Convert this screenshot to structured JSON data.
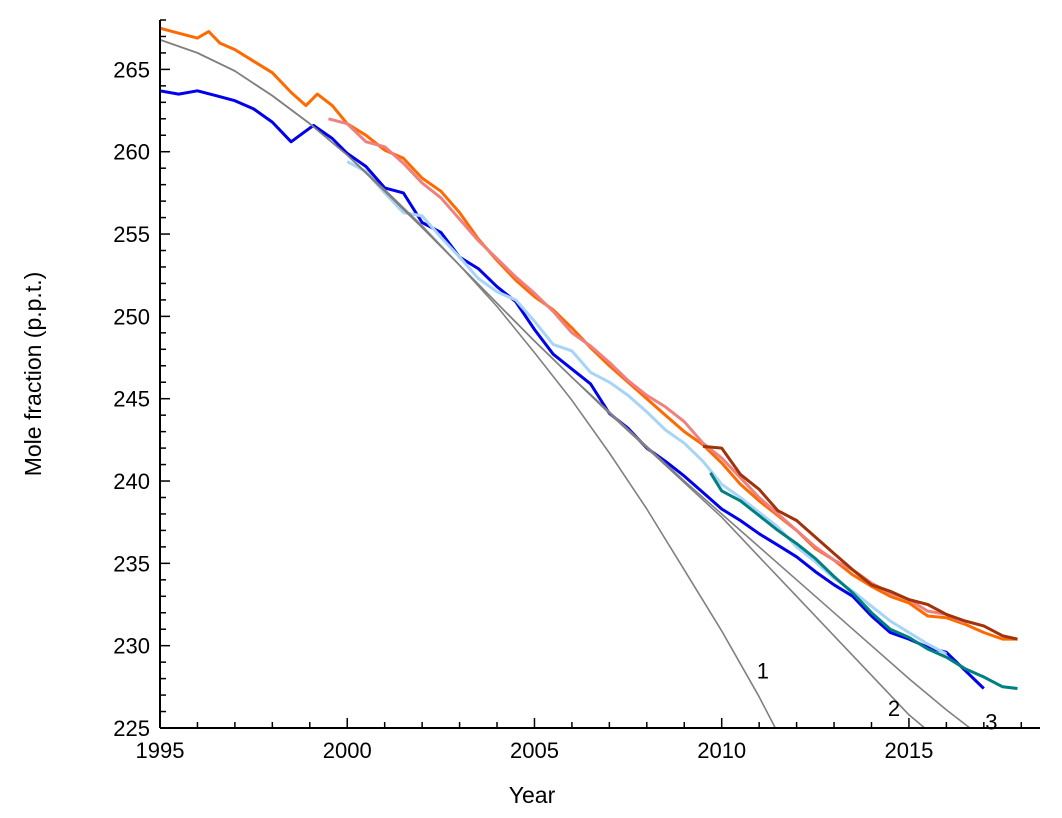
{
  "chart_data": {
    "type": "line",
    "xlabel": "Year",
    "ylabel": "Mole fraction (p.p.t.)",
    "xlim": [
      1995,
      2018.5
    ],
    "ylim": [
      225,
      268
    ],
    "x_ticks": [
      1995,
      2000,
      2005,
      2010,
      2015
    ],
    "y_ticks": [
      225,
      230,
      235,
      240,
      245,
      250,
      255,
      260,
      265
    ],
    "x_minor_step": 1,
    "y_minor_step": 1,
    "grid": false,
    "legend": "none",
    "series": [
      {
        "color": "#ff6a00",
        "x": [
          1995.0,
          1995.5,
          1996.0,
          1996.3,
          1996.6,
          1997.0,
          1997.5,
          1998.0,
          1998.5,
          1998.9,
          1999.2,
          1999.6,
          2000.0,
          2000.5,
          2001.0,
          2001.5,
          2002.0,
          2002.5,
          2003.0,
          2003.5,
          2004.0,
          2004.5,
          2005.0,
          2005.5,
          2006.0,
          2006.5,
          2007.0,
          2007.5,
          2008.0,
          2008.5,
          2009.0,
          2009.5,
          2010.0,
          2010.5,
          2011.0,
          2011.5,
          2012.0,
          2012.5,
          2013.0,
          2013.5,
          2014.0,
          2014.5,
          2015.0,
          2015.5,
          2016.0,
          2016.5,
          2017.0,
          2017.5,
          2017.9
        ],
        "y": [
          267.5,
          267.2,
          266.9,
          267.3,
          266.6,
          266.2,
          265.5,
          264.8,
          263.6,
          262.8,
          263.5,
          262.8,
          261.7,
          261.0,
          260.1,
          259.6,
          258.4,
          257.6,
          256.3,
          254.7,
          253.4,
          252.2,
          251.2,
          250.4,
          249.3,
          248.1,
          247.0,
          246.0,
          245.0,
          244.0,
          243.0,
          242.2,
          241.1,
          239.8,
          238.8,
          237.9,
          237.0,
          235.9,
          235.2,
          234.3,
          233.6,
          233.0,
          232.6,
          231.8,
          231.7,
          231.3,
          230.8,
          230.4,
          230.4
        ]
      },
      {
        "color": "#f08080",
        "x": [
          1999.5,
          2000.0,
          2000.5,
          2001.0,
          2001.5,
          2002.0,
          2002.5,
          2003.0,
          2003.5,
          2004.0,
          2004.5,
          2005.0,
          2005.5,
          2006.0,
          2006.5,
          2007.0,
          2007.5,
          2008.0,
          2008.5,
          2009.0,
          2009.5,
          2010.0,
          2010.5,
          2011.0,
          2011.5,
          2012.0,
          2012.5,
          2013.0,
          2013.5,
          2014.0,
          2014.5,
          2015.0,
          2015.5,
          2016.0,
          2016.5
        ],
        "y": [
          262.0,
          261.7,
          260.6,
          260.3,
          259.3,
          258.1,
          257.2,
          255.9,
          254.6,
          253.5,
          252.4,
          251.4,
          250.3,
          249.0,
          248.2,
          247.2,
          246.1,
          245.2,
          244.5,
          243.6,
          242.3,
          241.4,
          240.2,
          239.0,
          238.0,
          237.0,
          236.0,
          235.2,
          234.6,
          233.8,
          233.2,
          232.8,
          232.1,
          231.9,
          231.4
        ]
      },
      {
        "color": "#a0330a",
        "x": [
          2009.5,
          2010.0,
          2010.5,
          2011.0,
          2011.5,
          2012.0,
          2012.5,
          2013.0,
          2013.5,
          2014.0,
          2014.5,
          2015.0,
          2015.5,
          2016.0,
          2016.5,
          2017.0,
          2017.5,
          2017.9
        ],
        "y": [
          242.1,
          242.0,
          240.4,
          239.5,
          238.2,
          237.6,
          236.6,
          235.6,
          234.6,
          233.7,
          233.3,
          232.8,
          232.5,
          231.9,
          231.5,
          231.2,
          230.6,
          230.4
        ]
      },
      {
        "color": "#0000ee",
        "x": [
          1995.0,
          1995.5,
          1996.0,
          1996.5,
          1997.0,
          1997.5,
          1998.0,
          1998.5,
          1998.8,
          1999.1,
          1999.6,
          2000.0,
          2000.5,
          2001.0,
          2001.5,
          2002.0,
          2002.5,
          2003.0,
          2003.5,
          2004.0,
          2004.5,
          2005.0,
          2005.5,
          2006.0,
          2006.5,
          2007.0,
          2007.5,
          2008.0,
          2008.5,
          2009.0,
          2009.5,
          2010.0,
          2010.5,
          2011.0,
          2011.5,
          2012.0,
          2012.5,
          2013.0,
          2013.5,
          2014.0,
          2014.5,
          2015.0,
          2015.5,
          2016.0,
          2016.5,
          2017.0
        ],
        "y": [
          263.7,
          263.5,
          263.7,
          263.4,
          263.1,
          262.6,
          261.8,
          260.6,
          261.1,
          261.6,
          260.8,
          259.9,
          259.1,
          257.8,
          257.5,
          255.7,
          255.1,
          253.6,
          252.9,
          251.8,
          250.9,
          249.2,
          247.7,
          246.8,
          245.9,
          244.1,
          243.2,
          242.0,
          241.2,
          240.3,
          239.3,
          238.3,
          237.6,
          236.8,
          236.1,
          235.4,
          234.5,
          233.7,
          233.0,
          231.8,
          230.8,
          230.4,
          229.9,
          229.6,
          228.5,
          227.4
        ]
      },
      {
        "color": "#a8d4f8",
        "x": [
          2000.0,
          2000.5,
          2001.0,
          2001.5,
          2002.0,
          2002.5,
          2003.0,
          2003.5,
          2004.0,
          2004.5,
          2005.0,
          2005.5,
          2006.0,
          2006.5,
          2007.0,
          2007.5,
          2008.0,
          2008.5,
          2009.0,
          2009.5,
          2010.0,
          2010.5,
          2011.0,
          2011.5,
          2012.0,
          2012.5,
          2013.0,
          2013.5,
          2014.0,
          2014.5,
          2015.0,
          2015.5,
          2016.0
        ],
        "y": [
          259.4,
          258.8,
          257.5,
          256.3,
          256.1,
          254.8,
          253.6,
          252.3,
          251.5,
          251.0,
          249.7,
          248.3,
          247.9,
          246.6,
          246.0,
          245.2,
          244.2,
          243.1,
          242.3,
          241.2,
          239.8,
          239.0,
          238.1,
          237.2,
          236.0,
          235.1,
          234.1,
          233.3,
          232.4,
          231.5,
          230.8,
          230.1,
          229.5
        ]
      },
      {
        "color": "#008080",
        "x": [
          2009.7,
          2010.0,
          2010.5,
          2011.0,
          2011.5,
          2012.0,
          2012.5,
          2013.0,
          2013.5,
          2014.0,
          2014.5,
          2015.0,
          2015.5,
          2016.0,
          2016.5,
          2017.0,
          2017.5,
          2017.9
        ],
        "y": [
          240.5,
          239.4,
          238.8,
          237.9,
          237.0,
          236.2,
          235.3,
          234.2,
          233.2,
          232.0,
          231.0,
          230.5,
          229.8,
          229.3,
          228.6,
          228.1,
          227.5,
          227.4
        ]
      },
      {
        "color": "#808080",
        "x": [
          1995.0,
          1996.0,
          1997.0,
          1998.0,
          1999.0,
          2000.0,
          2001.0,
          2002.0,
          2003.0,
          2004.0,
          2005.0,
          2006.0,
          2007.0,
          2008.0,
          2009.0,
          2010.0,
          2011.0,
          2012.0,
          2012.9
        ],
        "y": [
          266.8,
          266.0,
          264.9,
          263.4,
          261.7,
          259.8,
          257.7,
          255.5,
          253.1,
          250.6,
          247.8,
          244.9,
          241.7,
          238.3,
          234.6,
          230.9,
          226.9,
          222.5,
          218.3
        ]
      },
      {
        "color": "#808080",
        "x": [
          1995.0,
          1996.0,
          1997.0,
          1998.0,
          1999.0,
          2000.0,
          2001.0,
          2002.0,
          2003.0,
          2004.0,
          2005.0,
          2006.0,
          2007.0,
          2008.0,
          2009.0,
          2010.0,
          2011.0,
          2012.0,
          2013.0,
          2014.0,
          2015.0,
          2016.0
        ],
        "y": [
          266.8,
          266.0,
          264.9,
          263.4,
          261.7,
          259.8,
          257.6,
          255.4,
          253.1,
          250.8,
          248.5,
          246.3,
          244.1,
          242.0,
          239.9,
          237.8,
          235.4,
          233.0,
          230.6,
          228.2,
          225.8,
          223.9
        ]
      },
      {
        "color": "#808080",
        "x": [
          1995.0,
          1996.0,
          1997.0,
          1998.0,
          1999.0,
          2000.0,
          2001.0,
          2002.0,
          2003.0,
          2004.0,
          2005.0,
          2006.0,
          2007.0,
          2008.0,
          2009.0,
          2010.0,
          2011.0,
          2012.0,
          2013.0,
          2014.0,
          2015.0,
          2016.0,
          2016.8
        ],
        "y": [
          266.8,
          266.0,
          264.9,
          263.4,
          261.7,
          259.8,
          257.6,
          255.4,
          253.1,
          250.8,
          248.5,
          246.3,
          244.2,
          242.1,
          240.0,
          238.0,
          236.0,
          234.0,
          232.0,
          230.0,
          228.0,
          226.1,
          224.7
        ]
      }
    ],
    "annotations": [
      {
        "text": "1",
        "x": 2011.1,
        "y": 228.5
      },
      {
        "text": "2",
        "x": 2014.6,
        "y": 226.2
      },
      {
        "text": "3",
        "x": 2017.2,
        "y": 225.4
      }
    ]
  }
}
